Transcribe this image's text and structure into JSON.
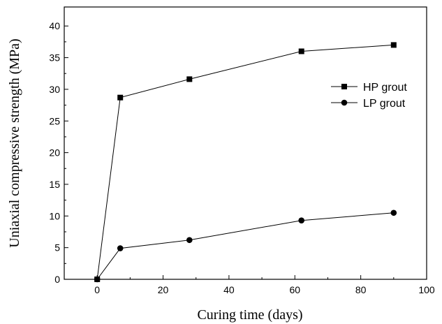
{
  "chart_data": {
    "type": "line",
    "xlabel": "Curing time (days)",
    "ylabel": "Uniaxial compressive strength (MPa)",
    "xlim": [
      -10,
      100
    ],
    "ylim": [
      0,
      43
    ],
    "x_ticks": [
      0,
      20,
      40,
      60,
      80,
      100
    ],
    "y_ticks": [
      0,
      5,
      10,
      15,
      20,
      25,
      30,
      35,
      40
    ],
    "grid": false,
    "legend_position": "right",
    "series": [
      {
        "name": "HP grout",
        "marker": "square",
        "color": "#000000",
        "x": [
          0,
          7,
          28,
          62,
          90
        ],
        "y": [
          0,
          28.7,
          31.6,
          36.0,
          37.0
        ]
      },
      {
        "name": "LP grout",
        "marker": "circle",
        "color": "#000000",
        "x": [
          0,
          7,
          28,
          62,
          90
        ],
        "y": [
          0,
          4.9,
          6.2,
          9.3,
          10.5
        ]
      }
    ]
  }
}
